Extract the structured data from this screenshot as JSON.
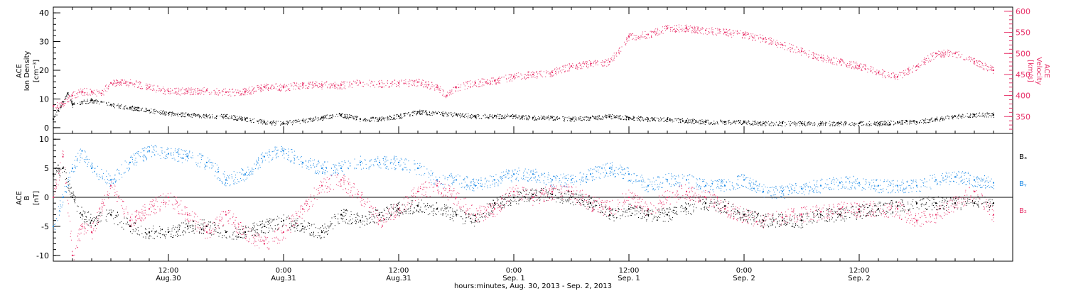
{
  "colors": {
    "black": "#000000",
    "pink": "#e8326a",
    "blue": "#1e8be6"
  },
  "chart_data": [
    {
      "type": "scatter",
      "panel": "top",
      "ylabel_left": [
        "ACE",
        "Ion Density",
        "[cm⁻³]"
      ],
      "ylabel_right": [
        "ACE",
        "Velocity",
        "[km/s]"
      ],
      "ylim_left": [
        -2,
        42
      ],
      "yticks_left": [
        "0",
        "10",
        "20",
        "30",
        "40"
      ],
      "ylim_right": [
        310,
        610
      ],
      "yticks_right": [
        "350",
        "400",
        "450",
        "500",
        "550",
        "600"
      ],
      "series": [
        {
          "color": "#000000",
          "axis": "left",
          "x": [
            0,
            0.5,
            1,
            1.5,
            2,
            3,
            4,
            5,
            6,
            8,
            10,
            12,
            14,
            16,
            18,
            20,
            22,
            24,
            26,
            28,
            30,
            32,
            34,
            36,
            38,
            40,
            42,
            44,
            46,
            48,
            50,
            52,
            54,
            56,
            58,
            60,
            62,
            64,
            66,
            68,
            70,
            72,
            74,
            76,
            78,
            80,
            82,
            84,
            86,
            88,
            90,
            92,
            94,
            96,
            98
          ],
          "y": [
            3,
            6,
            9,
            12,
            8,
            9,
            9.5,
            9,
            8,
            7,
            6,
            5,
            4.5,
            4,
            4,
            3,
            2,
            1.5,
            2.5,
            3.5,
            4.5,
            3,
            3,
            4,
            5.5,
            5,
            4.5,
            4,
            4,
            4,
            3.5,
            3.5,
            3,
            3.5,
            4,
            3.5,
            3,
            3,
            2.5,
            2,
            2,
            2,
            1.5,
            1.5,
            1.5,
            1.5,
            1.5,
            1.5,
            1.5,
            2,
            2,
            3,
            4,
            4.5,
            4.5
          ]
        },
        {
          "color": "#e8326a",
          "axis": "right",
          "x": [
            0,
            1,
            2,
            3,
            4,
            5,
            6,
            7,
            8,
            10,
            12,
            14,
            16,
            18,
            20,
            22,
            24,
            26,
            28,
            30,
            32,
            34,
            36,
            38,
            40,
            41,
            42,
            44,
            46,
            48,
            50,
            52,
            54,
            56,
            58,
            60,
            62,
            64,
            66,
            68,
            70,
            72,
            74,
            76,
            78,
            80,
            82,
            84,
            86,
            88,
            90,
            92,
            94,
            96,
            98
          ],
          "y": [
            375,
            380,
            400,
            410,
            410,
            405,
            430,
            432,
            430,
            420,
            410,
            410,
            412,
            408,
            410,
            420,
            420,
            425,
            425,
            425,
            430,
            428,
            430,
            432,
            420,
            400,
            420,
            430,
            435,
            445,
            450,
            455,
            470,
            475,
            480,
            540,
            545,
            560,
            560,
            555,
            550,
            545,
            535,
            520,
            505,
            490,
            480,
            470,
            455,
            445,
            470,
            500,
            500,
            480,
            460
          ]
        }
      ]
    },
    {
      "type": "scatter",
      "panel": "bottom",
      "ylabel_left": [
        "ACE",
        "B",
        "[nT]"
      ],
      "ylim": [
        -11,
        11
      ],
      "yticks": [
        "-10",
        "-5",
        "0",
        "5",
        "10"
      ],
      "zero_line": true,
      "legend": [
        "Bₓ",
        "Bᵧ",
        "B₂"
      ],
      "legend_position": "right",
      "series": [
        {
          "name": "Bₓ",
          "color": "#000000",
          "x": [
            0,
            1,
            2,
            3,
            4,
            6,
            8,
            10,
            12,
            14,
            16,
            18,
            20,
            22,
            24,
            26,
            28,
            30,
            32,
            34,
            36,
            38,
            40,
            42,
            44,
            46,
            48,
            50,
            52,
            54,
            56,
            58,
            60,
            62,
            64,
            66,
            68,
            70,
            72,
            74,
            76,
            78,
            80,
            82,
            84,
            86,
            88,
            90,
            92,
            94,
            96,
            98
          ],
          "y": [
            4,
            5,
            0,
            -3,
            -4,
            -3,
            -5,
            -6,
            -6,
            -5,
            -5,
            -6,
            -6,
            -5,
            -4,
            -5,
            -6,
            -3,
            -4,
            -3,
            -2,
            -1.5,
            -2,
            -3,
            -4,
            -1,
            0,
            0.5,
            0.5,
            0,
            -1,
            -3,
            -2,
            -3,
            -3,
            -2,
            -1,
            -1.5,
            -3,
            -4,
            -4,
            -4,
            -3,
            -3,
            -2.5,
            -2,
            -1.5,
            -1,
            -1,
            -1,
            -1,
            -1
          ]
        },
        {
          "name": "Bᵧ",
          "color": "#1e8be6",
          "x": [
            0,
            1,
            2,
            3,
            4,
            6,
            8,
            10,
            12,
            14,
            16,
            18,
            20,
            22,
            24,
            26,
            28,
            30,
            32,
            34,
            36,
            38,
            40,
            42,
            44,
            46,
            48,
            50,
            52,
            54,
            56,
            58,
            60,
            62,
            64,
            66,
            68,
            70,
            72,
            74,
            76,
            78,
            80,
            82,
            84,
            86,
            88,
            90,
            92,
            94,
            96,
            98
          ],
          "y": [
            -5,
            0,
            5,
            8,
            5,
            3,
            6,
            8,
            7.5,
            7,
            6,
            3,
            4,
            7,
            8,
            6,
            5,
            5,
            6,
            6,
            6,
            5,
            3,
            3,
            2,
            3,
            4,
            4,
            3,
            3,
            4,
            5,
            4,
            2,
            3,
            3,
            2,
            2,
            3,
            1,
            1,
            1.5,
            2,
            2.5,
            2.5,
            2,
            2,
            2,
            3,
            3.5,
            3,
            2.5
          ]
        },
        {
          "name": "B₂",
          "color": "#e8326a",
          "x": [
            0,
            1,
            2,
            3,
            4,
            6,
            8,
            10,
            12,
            14,
            16,
            18,
            20,
            22,
            24,
            26,
            28,
            30,
            32,
            34,
            36,
            38,
            40,
            42,
            44,
            46,
            48,
            50,
            52,
            54,
            56,
            58,
            60,
            62,
            64,
            66,
            68,
            70,
            72,
            74,
            76,
            78,
            80,
            82,
            84,
            86,
            88,
            90,
            92,
            94,
            96,
            98
          ],
          "y": [
            0,
            7,
            -10,
            -5,
            -6,
            2,
            -4,
            -2,
            0,
            -3,
            -6,
            -3,
            -6,
            -8,
            -6,
            -2,
            2,
            3,
            0,
            -4,
            -2,
            1,
            2,
            0,
            -3,
            -2,
            1,
            0,
            1,
            1,
            -1,
            -2,
            0,
            -2,
            0,
            1,
            0,
            -2,
            -3,
            -4,
            -3.5,
            -3,
            -2.5,
            -2,
            -2,
            -2,
            -2,
            -4,
            -3,
            -1,
            1,
            -3
          ]
        }
      ]
    }
  ],
  "xaxis": {
    "ticks": [
      {
        "h": 12,
        "line1": "12:00",
        "line2": "Aug.30"
      },
      {
        "h": 24,
        "line1": "0:00",
        "line2": "Aug.31"
      },
      {
        "h": 36,
        "line1": "12:00",
        "line2": "Aug.31"
      },
      {
        "h": 48,
        "line1": "0:00",
        "line2": "Sep. 1"
      },
      {
        "h": 60,
        "line1": "12:00",
        "line2": "Sep. 1"
      },
      {
        "h": 72,
        "line1": "0:00",
        "line2": "Sep. 2"
      },
      {
        "h": 84,
        "line1": "12:00",
        "line2": "Sep. 2"
      }
    ],
    "xlabel": "hours:minutes, Aug. 30, 2013 - Sep.  2, 2013"
  }
}
